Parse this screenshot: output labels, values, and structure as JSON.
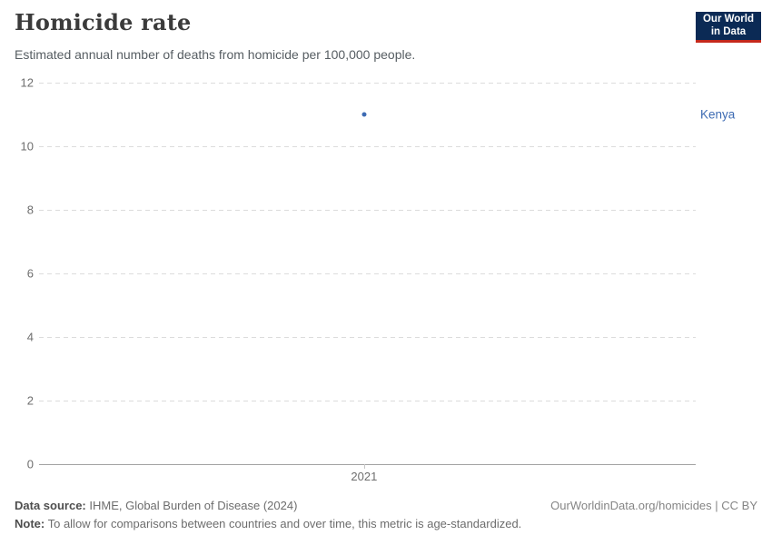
{
  "header": {
    "title": "Homicide rate",
    "subtitle": "Estimated annual number of deaths from homicide per 100,000 people.",
    "logo": {
      "line1": "Our World",
      "line2": "in Data",
      "bg_color": "#0b2a55",
      "accent_color": "#c5291c"
    }
  },
  "chart_data": {
    "type": "scatter",
    "title": "Homicide rate",
    "series": [
      {
        "name": "Kenya",
        "x": [
          2021
        ],
        "values": [
          11
        ],
        "color": "#3d6bb3"
      }
    ],
    "xticks": [
      2021
    ],
    "yticks": [
      0,
      2,
      4,
      6,
      8,
      10,
      12
    ],
    "ylim": [
      0,
      12
    ],
    "xlabel": "",
    "ylabel": "",
    "grid": "horizontal-dashed",
    "legend_position": "right-of-point",
    "gridline_color": "#dcdcdc",
    "axis_line_color": "#a3a3a3"
  },
  "footer": {
    "data_source_label": "Data source:",
    "data_source_value": " IHME, Global Burden of Disease (2024)",
    "note_label": "Note:",
    "note_value": " To allow for comparisons between countries and over time, this metric is age-standardized.",
    "link": "OurWorldinData.org/homicides | CC BY"
  }
}
